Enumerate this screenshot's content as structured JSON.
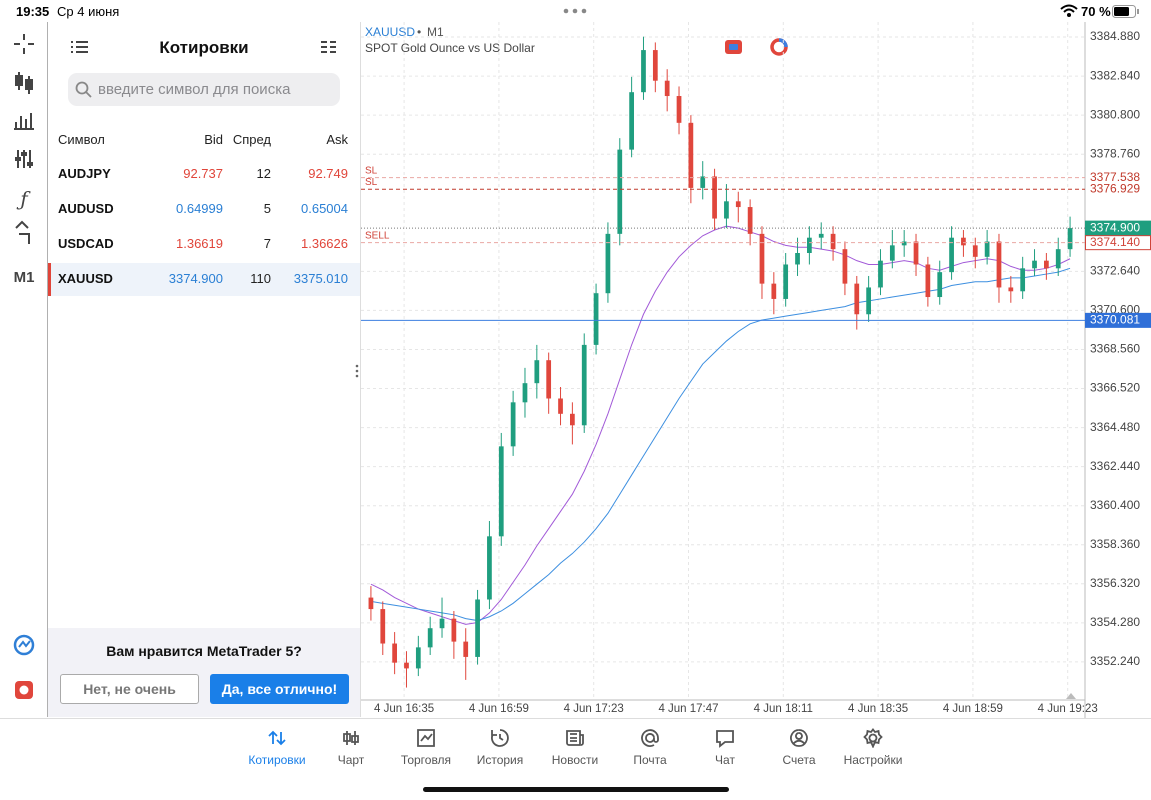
{
  "status_bar": {
    "time": "19:35",
    "date": "Ср 4 июня",
    "battery": "70 %"
  },
  "sidebar": {
    "timeframe": "M1"
  },
  "quotes": {
    "title": "Котировки",
    "search_placeholder": "введите символ для поиска",
    "columns": [
      "Символ",
      "Bid",
      "Спред",
      "Ask"
    ],
    "selected": 3,
    "rows": [
      {
        "symbol": "AUDJPY",
        "bid": "92.737",
        "spread": "12",
        "ask": "92.749",
        "direction": "down"
      },
      {
        "symbol": "AUDUSD",
        "bid": "0.64999",
        "spread": "5",
        "ask": "0.65004",
        "direction": "up"
      },
      {
        "symbol": "USDCAD",
        "bid": "1.36619",
        "spread": "7",
        "ask": "1.36626",
        "direction": "down"
      },
      {
        "symbol": "XAUUSD",
        "bid": "3374.900",
        "spread": "110",
        "ask": "3375.010",
        "direction": "up"
      }
    ]
  },
  "rating": {
    "question": "Вам нравится MetaTrader 5?",
    "no": "Нет, не очень",
    "yes": "Да, все отлично!"
  },
  "tabs": {
    "active": 0,
    "items": [
      "Котировки",
      "Чарт",
      "Торговля",
      "История",
      "Новости",
      "Почта",
      "Чат",
      "Счета",
      "Настройки"
    ]
  },
  "chart_data": {
    "type": "candlestick",
    "symbol": "XAUUSD",
    "timeframe": "M1",
    "description": "SPOT Gold Ounce vs US Dollar",
    "up_color": "#1f9e7f",
    "down_color": "#e0463c",
    "grid": true,
    "open": [
      3355.6,
      3355.0,
      3353.2,
      3352.2,
      3351.9,
      3353.0,
      3354.0,
      3354.5,
      3353.3,
      3352.5,
      3355.5,
      3358.8,
      3363.5,
      3365.8,
      3366.8,
      3368.0,
      3366.0,
      3365.2,
      3364.6,
      3368.8,
      3371.5,
      3374.6,
      3379.0,
      3382.0,
      3384.2,
      3382.6,
      3381.8,
      3380.4,
      3377.0,
      3377.6,
      3375.4,
      3376.3,
      3376.0,
      3374.6,
      3372.0,
      3371.2,
      3373.0,
      3373.6,
      3374.4,
      3374.6,
      3373.8,
      3372.0,
      3370.4,
      3371.8,
      3373.2,
      3374.0,
      3374.2,
      3373.0,
      3371.3,
      3372.6,
      3374.4,
      3374.0,
      3373.4,
      3374.2,
      3371.8,
      3371.6,
      3372.8,
      3373.2,
      3372.8,
      3373.8
    ],
    "high": [
      3356.2,
      3355.4,
      3353.8,
      3352.8,
      3353.6,
      3354.6,
      3355.6,
      3354.9,
      3354.0,
      3356.0,
      3359.6,
      3364.2,
      3366.4,
      3367.6,
      3368.8,
      3368.4,
      3366.6,
      3365.8,
      3369.4,
      3372.0,
      3375.2,
      3379.6,
      3382.8,
      3384.9,
      3384.6,
      3383.2,
      3382.3,
      3380.8,
      3378.4,
      3378.0,
      3377.2,
      3376.8,
      3376.4,
      3375.0,
      3372.6,
      3373.6,
      3374.4,
      3375.0,
      3375.2,
      3375.0,
      3374.2,
      3372.4,
      3372.4,
      3373.8,
      3374.8,
      3374.8,
      3374.6,
      3373.4,
      3373.2,
      3375.0,
      3374.8,
      3374.4,
      3374.8,
      3374.6,
      3372.4,
      3373.4,
      3373.8,
      3373.6,
      3374.4,
      3375.5
    ],
    "low": [
      3354.4,
      3352.6,
      3351.6,
      3350.9,
      3351.5,
      3352.6,
      3353.5,
      3352.4,
      3351.3,
      3352.1,
      3355.0,
      3358.3,
      3363.0,
      3365.0,
      3366.0,
      3365.2,
      3364.6,
      3363.6,
      3364.2,
      3368.3,
      3371.0,
      3374.0,
      3378.6,
      3381.6,
      3382.0,
      3381.0,
      3379.8,
      3376.2,
      3376.4,
      3374.8,
      3374.9,
      3375.2,
      3374.0,
      3371.2,
      3370.4,
      3370.8,
      3372.4,
      3373.0,
      3373.8,
      3373.2,
      3371.4,
      3369.6,
      3370.0,
      3371.4,
      3372.8,
      3373.4,
      3372.4,
      3370.8,
      3370.9,
      3372.2,
      3373.4,
      3372.8,
      3373.0,
      3371.0,
      3371.0,
      3371.2,
      3372.4,
      3372.2,
      3372.4,
      3373.4
    ],
    "close": [
      3355.0,
      3353.2,
      3352.2,
      3351.9,
      3353.0,
      3354.0,
      3354.5,
      3353.3,
      3352.5,
      3355.5,
      3358.8,
      3363.5,
      3365.8,
      3366.8,
      3368.0,
      3366.0,
      3365.2,
      3364.6,
      3368.8,
      3371.5,
      3374.6,
      3379.0,
      3382.0,
      3384.2,
      3382.6,
      3381.8,
      3380.4,
      3377.0,
      3377.6,
      3375.4,
      3376.3,
      3376.0,
      3374.6,
      3372.0,
      3371.2,
      3373.0,
      3373.6,
      3374.4,
      3374.6,
      3373.8,
      3372.0,
      3370.4,
      3371.8,
      3373.2,
      3374.0,
      3374.2,
      3373.0,
      3371.3,
      3372.6,
      3374.4,
      3374.0,
      3373.4,
      3374.2,
      3371.8,
      3371.6,
      3372.8,
      3373.2,
      3372.8,
      3373.8,
      3374.9
    ],
    "ma": [
      {
        "color": "#a25ad8",
        "values": [
          3356.3,
          3356.0,
          3355.6,
          3355.3,
          3355.0,
          3354.8,
          3354.6,
          3354.4,
          3354.2,
          3354.3,
          3354.8,
          3355.5,
          3356.4,
          3357.3,
          3358.3,
          3359.2,
          3360.1,
          3361.0,
          3362.2,
          3363.6,
          3365.2,
          3367.0,
          3368.8,
          3370.4,
          3371.6,
          3372.6,
          3373.4,
          3374.0,
          3374.5,
          3374.8,
          3375.0,
          3374.9,
          3374.7,
          3374.5,
          3374.2,
          3374.0,
          3373.9,
          3373.9,
          3373.8,
          3373.7,
          3373.5,
          3373.2,
          3373.0,
          3373.0,
          3373.1,
          3373.2,
          3373.1,
          3372.8,
          3372.7,
          3372.9,
          3373.1,
          3373.2,
          3373.3,
          3373.2,
          3372.9,
          3372.7,
          3372.7,
          3372.8,
          3373.0,
          3373.3
        ]
      },
      {
        "color": "#3d8fe0",
        "values": [
          3355.4,
          3355.3,
          3355.2,
          3355.1,
          3355.0,
          3354.9,
          3354.8,
          3354.7,
          3354.5,
          3354.4,
          3354.6,
          3354.9,
          3355.3,
          3355.8,
          3356.3,
          3356.8,
          3357.4,
          3357.9,
          3358.5,
          3359.2,
          3360.0,
          3361.0,
          3362.0,
          3363.0,
          3364.0,
          3365.0,
          3366.0,
          3366.9,
          3367.8,
          3368.4,
          3369.0,
          3369.5,
          3369.9,
          3370.1,
          3370.2,
          3370.3,
          3370.4,
          3370.5,
          3370.6,
          3370.7,
          3370.8,
          3371.0,
          3371.1,
          3371.2,
          3371.3,
          3371.4,
          3371.5,
          3371.6,
          3371.7,
          3371.9,
          3372.0,
          3372.1,
          3372.1,
          3372.2,
          3372.3,
          3372.3,
          3372.4,
          3372.5,
          3372.6,
          3372.8
        ]
      }
    ],
    "levels": [
      {
        "name": "SL",
        "price": {
          "value": 3377.538,
          "label": "3377.538"
        },
        "color": "#e9a7a2",
        "style": "dashed",
        "label_style": "text"
      },
      {
        "name": "SL",
        "price": {
          "value": 3376.929,
          "label": "3376.929"
        },
        "color": "#c0392b",
        "style": "dashed",
        "label_style": "text"
      },
      {
        "price": {
          "value": 3374.9,
          "label": "3374.900"
        },
        "color": "#777777",
        "style": "dotted",
        "label_style": "filled",
        "label_color": "#1f9e7f"
      },
      {
        "name": "SELL",
        "price": {
          "value": 3374.14,
          "label": "3374.140"
        },
        "color": "#e9a7a2",
        "style": "dashed",
        "label_style": "outline"
      },
      {
        "price": {
          "value": 3370.081,
          "label": "3370.081"
        },
        "color": "#3d7fe0",
        "style": "solid",
        "label_style": "filled",
        "label_color": "#2f6fd8"
      }
    ],
    "xlim": [
      -0.5,
      59.5
    ],
    "xticks": [
      {
        "value": 2.8,
        "label": "4 Jun 16:35"
      },
      {
        "value": 10.8,
        "label": "4 Jun 16:59"
      },
      {
        "value": 18.8,
        "label": "4 Jun 17:23"
      },
      {
        "value": 26.8,
        "label": "4 Jun 17:47"
      },
      {
        "value": 34.8,
        "label": "4 Jun 18:11"
      },
      {
        "value": 42.8,
        "label": "4 Jun 18:35"
      },
      {
        "value": 50.8,
        "label": "4 Jun 18:59"
      },
      {
        "value": 58.8,
        "label": "4 Jun 19:23"
      }
    ],
    "ylim": [
      3350.25,
      3385.51
    ],
    "yticks": [
      {
        "value": 3352.24,
        "label": "3352.240"
      },
      {
        "value": 3354.28,
        "label": "3354.280"
      },
      {
        "value": 3356.32,
        "label": "3356.320"
      },
      {
        "value": 3358.36,
        "label": "3358.360"
      },
      {
        "value": 3360.4,
        "label": "3360.400"
      },
      {
        "value": 3362.44,
        "label": "3362.440"
      },
      {
        "value": 3364.48,
        "label": "3364.480"
      },
      {
        "value": 3366.52,
        "label": "3366.520"
      },
      {
        "value": 3368.56,
        "label": "3368.560"
      },
      {
        "value": 3370.6,
        "label": "3370.600"
      },
      {
        "value": 3372.64,
        "label": "3372.640"
      },
      {
        "value": 3378.76,
        "label": "3378.760"
      },
      {
        "value": 3380.8,
        "label": "3380.800"
      },
      {
        "value": 3382.84,
        "label": "3382.840"
      },
      {
        "value": 3384.88,
        "label": "3384.880"
      }
    ]
  }
}
